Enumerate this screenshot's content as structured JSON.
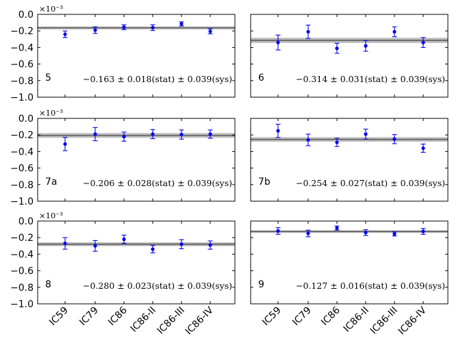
{
  "chart_data": {
    "type": "scatter",
    "categories": [
      "IC59",
      "IC79",
      "IC86",
      "IC86-II",
      "IC86-III",
      "IC86-IV"
    ],
    "ylim": [
      -1.0,
      0.0
    ],
    "yticks": [
      "0.0",
      "−0.2",
      "−0.4",
      "−0.6",
      "−0.8",
      "−1.0"
    ],
    "panels": [
      {
        "label": "5",
        "exponent": "×10⁻³",
        "values": [
          -0.24,
          -0.19,
          -0.155,
          -0.16,
          -0.115,
          -0.205
        ],
        "errors": [
          0.04,
          0.04,
          0.03,
          0.035,
          0.025,
          0.03
        ],
        "fit": -0.163,
        "fit_err": 0.018,
        "result": "−0.163 ± 0.018(stat) ± 0.039(sys)"
      },
      {
        "label": "6",
        "exponent": "",
        "values": [
          -0.34,
          -0.21,
          -0.41,
          -0.38,
          -0.21,
          -0.34
        ],
        "errors": [
          0.09,
          0.08,
          0.06,
          0.065,
          0.06,
          0.06
        ],
        "fit": -0.314,
        "fit_err": 0.031,
        "result": "−0.314 ± 0.031(stat) ± 0.039(sys)"
      },
      {
        "label": "7a",
        "exponent": "×10⁻³",
        "values": [
          -0.31,
          -0.19,
          -0.22,
          -0.19,
          -0.195,
          -0.19
        ],
        "errors": [
          0.08,
          0.08,
          0.055,
          0.055,
          0.055,
          0.05
        ],
        "fit": -0.206,
        "fit_err": 0.028,
        "result": "−0.206 ± 0.028(stat) ± 0.039(sys)"
      },
      {
        "label": "7b",
        "exponent": "",
        "values": [
          -0.15,
          -0.26,
          -0.29,
          -0.19,
          -0.25,
          -0.36
        ],
        "errors": [
          0.08,
          0.07,
          0.05,
          0.06,
          0.055,
          0.05
        ],
        "fit": -0.254,
        "fit_err": 0.027,
        "result": "−0.254 ± 0.027(stat) ± 0.039(sys)"
      },
      {
        "label": "8",
        "exponent": "×10⁻³",
        "values": [
          -0.27,
          -0.3,
          -0.22,
          -0.34,
          -0.28,
          -0.29
        ],
        "errors": [
          0.07,
          0.065,
          0.05,
          0.045,
          0.055,
          0.05
        ],
        "fit": -0.28,
        "fit_err": 0.023,
        "result": "−0.280 ± 0.023(stat) ± 0.039(sys)"
      },
      {
        "label": "9",
        "exponent": "",
        "values": [
          -0.12,
          -0.15,
          -0.085,
          -0.14,
          -0.155,
          -0.125
        ],
        "errors": [
          0.04,
          0.04,
          0.025,
          0.035,
          0.025,
          0.035
        ],
        "fit": -0.127,
        "fit_err": 0.016,
        "result": "−0.127 ± 0.016(stat) ± 0.039(sys)"
      }
    ]
  },
  "colors": {
    "points": "#0000ee",
    "fit_line": "#555555",
    "band": "#bbbbbb",
    "axes": "#000000"
  }
}
